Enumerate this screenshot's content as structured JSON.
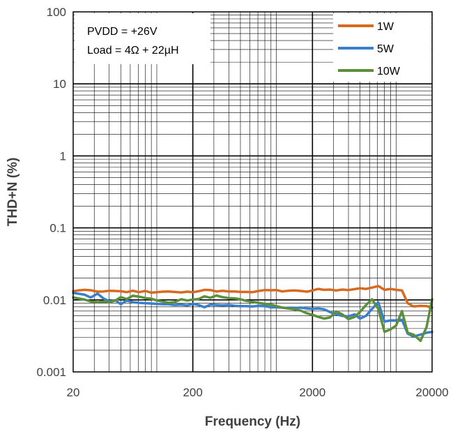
{
  "chart_data": {
    "type": "line",
    "xlabel": "Frequency (Hz)",
    "ylabel": "THD+N (%)",
    "x_scale": "log",
    "y_scale": "log",
    "xlim": [
      20,
      20000
    ],
    "ylim": [
      0.001,
      100
    ],
    "x_ticks": [
      "20",
      "200",
      "2000",
      "20000"
    ],
    "y_ticks": [
      "0.001",
      "0.01",
      "0.1",
      "1",
      "10",
      "100"
    ],
    "grid": true,
    "legend_position": "top-right",
    "annotations": [
      "PVDD = +26V",
      "Load = 4Ω + 22µH"
    ],
    "series": [
      {
        "name": "1W",
        "color": "#d86a1f",
        "x": [
          20,
          22,
          25,
          28,
          32,
          36,
          40,
          45,
          50,
          56,
          63,
          71,
          80,
          90,
          100,
          112,
          125,
          140,
          160,
          180,
          200,
          224,
          250,
          280,
          315,
          355,
          400,
          450,
          500,
          560,
          630,
          710,
          800,
          900,
          1000,
          1120,
          1250,
          1400,
          1600,
          1800,
          2000,
          2240,
          2500,
          2800,
          3150,
          3550,
          4000,
          4500,
          5000,
          5600,
          6300,
          7100,
          8000,
          9000,
          10000,
          11200,
          12500,
          14000,
          16000,
          18000,
          20000
        ],
        "y": [
          0.0132,
          0.0135,
          0.0138,
          0.0136,
          0.013,
          0.0131,
          0.0134,
          0.0133,
          0.0132,
          0.0128,
          0.0134,
          0.0128,
          0.0133,
          0.0126,
          0.0128,
          0.013,
          0.0131,
          0.0129,
          0.0127,
          0.013,
          0.0128,
          0.0132,
          0.0138,
          0.0137,
          0.0131,
          0.0134,
          0.0131,
          0.0131,
          0.0129,
          0.0129,
          0.0128,
          0.0133,
          0.0137,
          0.0136,
          0.0137,
          0.0131,
          0.0134,
          0.0135,
          0.0133,
          0.013,
          0.0135,
          0.0142,
          0.0138,
          0.0139,
          0.0135,
          0.0139,
          0.0137,
          0.0141,
          0.0145,
          0.0142,
          0.0148,
          0.0156,
          0.0138,
          0.0142,
          0.0138,
          0.0135,
          0.009,
          0.0081,
          0.0083,
          0.0082,
          0.0078
        ]
      },
      {
        "name": "5W",
        "color": "#3a7fc9",
        "x": [
          20,
          22,
          25,
          28,
          32,
          36,
          40,
          45,
          50,
          56,
          63,
          71,
          80,
          90,
          100,
          112,
          125,
          140,
          160,
          180,
          200,
          224,
          250,
          280,
          315,
          355,
          400,
          450,
          500,
          560,
          630,
          710,
          800,
          900,
          1000,
          1120,
          1250,
          1400,
          1600,
          1800,
          2000,
          2240,
          2500,
          2800,
          3150,
          3550,
          4000,
          4500,
          5000,
          5600,
          6300,
          7100,
          8000,
          9000,
          10000,
          11200,
          12500,
          14000,
          16000,
          18000,
          20000
        ],
        "y": [
          0.0125,
          0.0122,
          0.0118,
          0.0108,
          0.0122,
          0.0104,
          0.0096,
          0.0099,
          0.0087,
          0.0098,
          0.0093,
          0.0091,
          0.009,
          0.0089,
          0.0088,
          0.0087,
          0.0087,
          0.0085,
          0.0086,
          0.0084,
          0.0088,
          0.0085,
          0.0079,
          0.0086,
          0.0085,
          0.0084,
          0.0085,
          0.0083,
          0.0082,
          0.0082,
          0.0081,
          0.0083,
          0.0082,
          0.0079,
          0.0079,
          0.0078,
          0.0077,
          0.0077,
          0.0078,
          0.0076,
          0.0075,
          0.0076,
          0.0074,
          0.0068,
          0.0063,
          0.006,
          0.0059,
          0.0063,
          0.0055,
          0.006,
          0.0075,
          0.0093,
          0.005,
          0.0052,
          0.0052,
          0.0053,
          0.0034,
          0.0031,
          0.0033,
          0.0035,
          0.0036
        ]
      },
      {
        "name": "10W",
        "color": "#5b8f3a",
        "x": [
          20,
          22,
          25,
          28,
          32,
          36,
          40,
          45,
          50,
          56,
          63,
          71,
          80,
          90,
          100,
          112,
          125,
          140,
          160,
          180,
          200,
          224,
          250,
          280,
          315,
          355,
          400,
          450,
          500,
          560,
          630,
          710,
          800,
          900,
          1000,
          1120,
          1250,
          1400,
          1600,
          1800,
          2000,
          2240,
          2500,
          2800,
          3150,
          3550,
          4000,
          4500,
          5000,
          5600,
          6300,
          7100,
          8000,
          9000,
          10000,
          11200,
          12500,
          14000,
          16000,
          18000,
          20000
        ],
        "y": [
          0.0108,
          0.0105,
          0.0101,
          0.0095,
          0.0093,
          0.0095,
          0.0092,
          0.0098,
          0.0109,
          0.0103,
          0.0114,
          0.0111,
          0.0106,
          0.0104,
          0.0098,
          0.0095,
          0.0091,
          0.0093,
          0.0102,
          0.0098,
          0.0101,
          0.0103,
          0.0112,
          0.0107,
          0.0115,
          0.0109,
          0.0106,
          0.0105,
          0.0102,
          0.0097,
          0.0094,
          0.0091,
          0.0088,
          0.0086,
          0.0082,
          0.0078,
          0.0076,
          0.0074,
          0.0071,
          0.0065,
          0.0062,
          0.0058,
          0.0055,
          0.0057,
          0.0069,
          0.0063,
          0.0054,
          0.0058,
          0.0068,
          0.0085,
          0.0102,
          0.0075,
          0.0036,
          0.0039,
          0.0044,
          0.007,
          0.0035,
          0.0033,
          0.0027,
          0.0042,
          0.0102
        ]
      }
    ]
  }
}
